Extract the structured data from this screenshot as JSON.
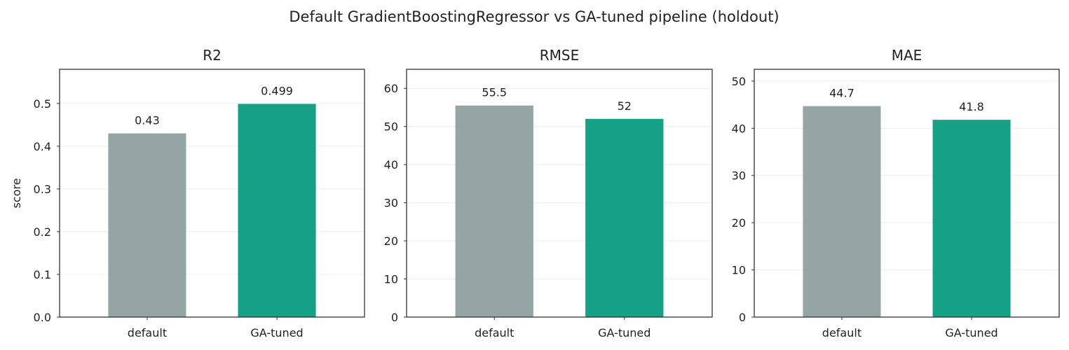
{
  "suptitle": "Default GradientBoostingRegressor vs GA-tuned pipeline (holdout)",
  "colors": {
    "default": "#95a5a6",
    "ga_tuned": "#16a085"
  },
  "chart_data": [
    {
      "type": "bar",
      "title": "R2",
      "ylabel": "score",
      "categories": [
        "default",
        "GA-tuned"
      ],
      "values": [
        0.43,
        0.499
      ],
      "value_labels": [
        "0.43",
        "0.499"
      ],
      "ylim": [
        0,
        0.58
      ],
      "yticks": [
        0.0,
        0.1,
        0.2,
        0.3,
        0.4,
        0.5
      ],
      "ytick_labels": [
        "0.0",
        "0.1",
        "0.2",
        "0.3",
        "0.4",
        "0.5"
      ],
      "grid": true
    },
    {
      "type": "bar",
      "title": "RMSE",
      "ylabel": "",
      "categories": [
        "default",
        "GA-tuned"
      ],
      "values": [
        55.5,
        52.0
      ],
      "value_labels": [
        "55.5",
        "52"
      ],
      "ylim": [
        0,
        65
      ],
      "yticks": [
        0,
        10,
        20,
        30,
        40,
        50,
        60
      ],
      "ytick_labels": [
        "0",
        "10",
        "20",
        "30",
        "40",
        "50",
        "60"
      ],
      "grid": true
    },
    {
      "type": "bar",
      "title": "MAE",
      "ylabel": "",
      "categories": [
        "default",
        "GA-tuned"
      ],
      "values": [
        44.7,
        41.8
      ],
      "value_labels": [
        "44.7",
        "41.8"
      ],
      "ylim": [
        0,
        52.5
      ],
      "yticks": [
        0,
        10,
        20,
        30,
        40,
        50
      ],
      "ytick_labels": [
        "0",
        "10",
        "20",
        "30",
        "40",
        "50"
      ],
      "grid": true
    }
  ]
}
